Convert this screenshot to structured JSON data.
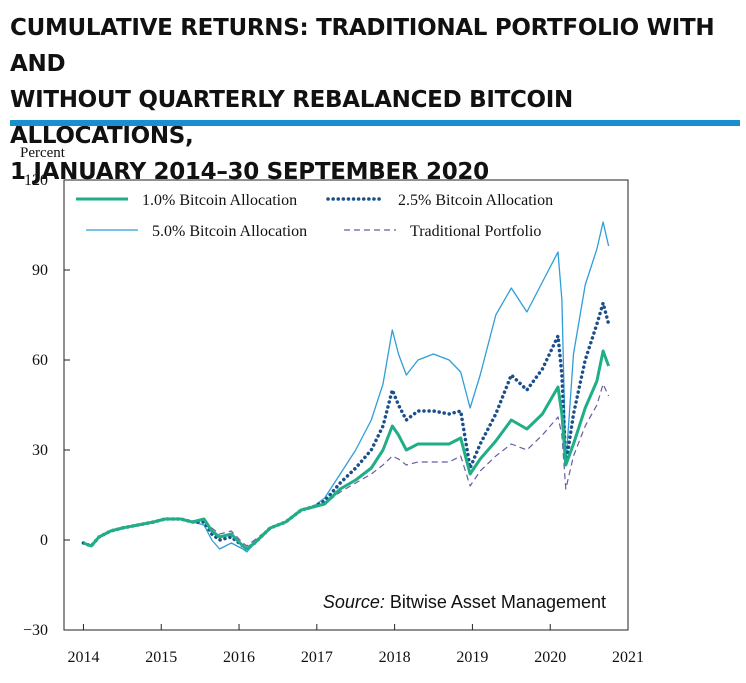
{
  "title": {
    "line1": "CUMULATIVE RETURNS: TRADITIONAL PORTFOLIO WITH AND",
    "line2": "WITHOUT QUARTERLY REBALANCED BITCOIN ALLOCATIONS,",
    "line3": "1 JANUARY 2014–30 SEPTEMBER 2020"
  },
  "source": {
    "prefix": "Source:",
    "text": " Bitwise Asset Management"
  },
  "colors": {
    "accent_rule": "#1a8fd0",
    "btc1": "#1fae86",
    "btc25": "#1b4f8c",
    "btc5": "#2f9ed8",
    "traditional": "#6b5aa6"
  },
  "chart_data": {
    "type": "line",
    "ylabel": "Percent",
    "xlabel": "",
    "ylim": [
      -30,
      120
    ],
    "xlim": [
      2013.75,
      2021
    ],
    "y_ticks": [
      "120",
      "90",
      "60",
      "30",
      "0",
      "−30"
    ],
    "x_ticks": [
      "2014",
      "2015",
      "2016",
      "2017",
      "2018",
      "2019",
      "2020",
      "2021"
    ],
    "grid": false,
    "legend_placement": "top-left",
    "legend": [
      "1.0% Bitcoin Allocation",
      "2.5% Bitcoin Allocation",
      "5.0% Bitcoin Allocation",
      "Traditional Portfolio"
    ],
    "series": [
      {
        "name": "1.0% Bitcoin Allocation",
        "style": "solid-thick",
        "x": [
          2014.0,
          2014.1,
          2014.2,
          2014.35,
          2014.5,
          2014.7,
          2014.9,
          2015.05,
          2015.25,
          2015.4,
          2015.55,
          2015.65,
          2015.75,
          2015.9,
          2016.05,
          2016.1,
          2016.2,
          2016.4,
          2016.6,
          2016.8,
          2016.95,
          2017.1,
          2017.3,
          2017.5,
          2017.7,
          2017.85,
          2017.97,
          2018.05,
          2018.15,
          2018.3,
          2018.5,
          2018.7,
          2018.85,
          2018.97,
          2019.1,
          2019.3,
          2019.5,
          2019.7,
          2019.9,
          2020.1,
          2020.15,
          2020.2,
          2020.3,
          2020.45,
          2020.6,
          2020.68,
          2020.75
        ],
        "y": [
          -1,
          -2,
          1,
          3,
          4,
          5,
          6,
          7,
          7,
          6,
          7,
          3,
          1,
          2,
          -2,
          -3,
          -1,
          4,
          6,
          10,
          11,
          12,
          17,
          20,
          24,
          30,
          38,
          35,
          30,
          32,
          32,
          32,
          34,
          22,
          27,
          33,
          40,
          37,
          42,
          51,
          42,
          25,
          32,
          44,
          53,
          63,
          58
        ]
      },
      {
        "name": "2.5% Bitcoin Allocation",
        "style": "dotted",
        "x": [
          2014.0,
          2014.1,
          2014.2,
          2014.35,
          2014.5,
          2014.7,
          2014.9,
          2015.05,
          2015.25,
          2015.4,
          2015.55,
          2015.65,
          2015.75,
          2015.9,
          2016.05,
          2016.1,
          2016.2,
          2016.4,
          2016.6,
          2016.8,
          2016.95,
          2017.1,
          2017.3,
          2017.5,
          2017.7,
          2017.85,
          2017.97,
          2018.05,
          2018.15,
          2018.3,
          2018.5,
          2018.7,
          2018.85,
          2018.97,
          2019.1,
          2019.3,
          2019.5,
          2019.7,
          2019.9,
          2020.1,
          2020.15,
          2020.2,
          2020.3,
          2020.45,
          2020.6,
          2020.68,
          2020.75
        ],
        "y": [
          -1,
          -2,
          1,
          3,
          4,
          5,
          6,
          7,
          7,
          6,
          6,
          2,
          0,
          1,
          -2,
          -3,
          -1,
          4,
          6,
          10,
          11,
          13,
          19,
          24,
          30,
          38,
          50,
          45,
          40,
          43,
          43,
          42,
          43,
          24,
          32,
          42,
          55,
          50,
          57,
          68,
          55,
          25,
          42,
          60,
          72,
          79,
          72
        ]
      },
      {
        "name": "5.0% Bitcoin Allocation",
        "style": "solid-thin",
        "x": [
          2014.0,
          2014.1,
          2014.2,
          2014.35,
          2014.5,
          2014.7,
          2014.9,
          2015.05,
          2015.25,
          2015.4,
          2015.55,
          2015.65,
          2015.75,
          2015.9,
          2016.05,
          2016.1,
          2016.2,
          2016.4,
          2016.6,
          2016.8,
          2016.95,
          2017.1,
          2017.3,
          2017.5,
          2017.7,
          2017.85,
          2017.97,
          2018.05,
          2018.15,
          2018.3,
          2018.5,
          2018.7,
          2018.85,
          2018.97,
          2019.1,
          2019.3,
          2019.5,
          2019.7,
          2019.9,
          2020.1,
          2020.15,
          2020.2,
          2020.3,
          2020.45,
          2020.6,
          2020.68,
          2020.75
        ],
        "y": [
          -1,
          -2,
          1,
          3,
          4,
          5,
          6,
          7,
          7,
          6,
          5,
          0,
          -3,
          -1,
          -3,
          -4,
          -1,
          4,
          6,
          10,
          11,
          14,
          22,
          30,
          40,
          52,
          70,
          62,
          55,
          60,
          62,
          60,
          56,
          44,
          55,
          75,
          84,
          76,
          86,
          96,
          80,
          25,
          62,
          85,
          97,
          106,
          98
        ]
      },
      {
        "name": "Traditional Portfolio",
        "style": "dashed",
        "x": [
          2014.0,
          2014.1,
          2014.2,
          2014.35,
          2014.5,
          2014.7,
          2014.9,
          2015.05,
          2015.25,
          2015.4,
          2015.55,
          2015.65,
          2015.75,
          2015.9,
          2016.05,
          2016.1,
          2016.2,
          2016.4,
          2016.6,
          2016.8,
          2016.95,
          2017.1,
          2017.3,
          2017.5,
          2017.7,
          2017.85,
          2017.97,
          2018.05,
          2018.15,
          2018.3,
          2018.5,
          2018.7,
          2018.85,
          2018.97,
          2019.1,
          2019.3,
          2019.5,
          2019.7,
          2019.9,
          2020.1,
          2020.15,
          2020.2,
          2020.3,
          2020.45,
          2020.6,
          2020.68,
          2020.75
        ],
        "y": [
          -1,
          -2,
          1,
          3,
          4,
          5,
          6,
          7,
          7,
          6,
          7,
          4,
          2,
          3,
          -1,
          -2,
          0,
          4,
          6,
          10,
          11,
          12,
          16,
          19,
          22,
          25,
          28,
          27,
          25,
          26,
          26,
          26,
          28,
          18,
          23,
          28,
          32,
          30,
          35,
          41,
          35,
          17,
          28,
          38,
          45,
          52,
          48
        ]
      }
    ]
  }
}
